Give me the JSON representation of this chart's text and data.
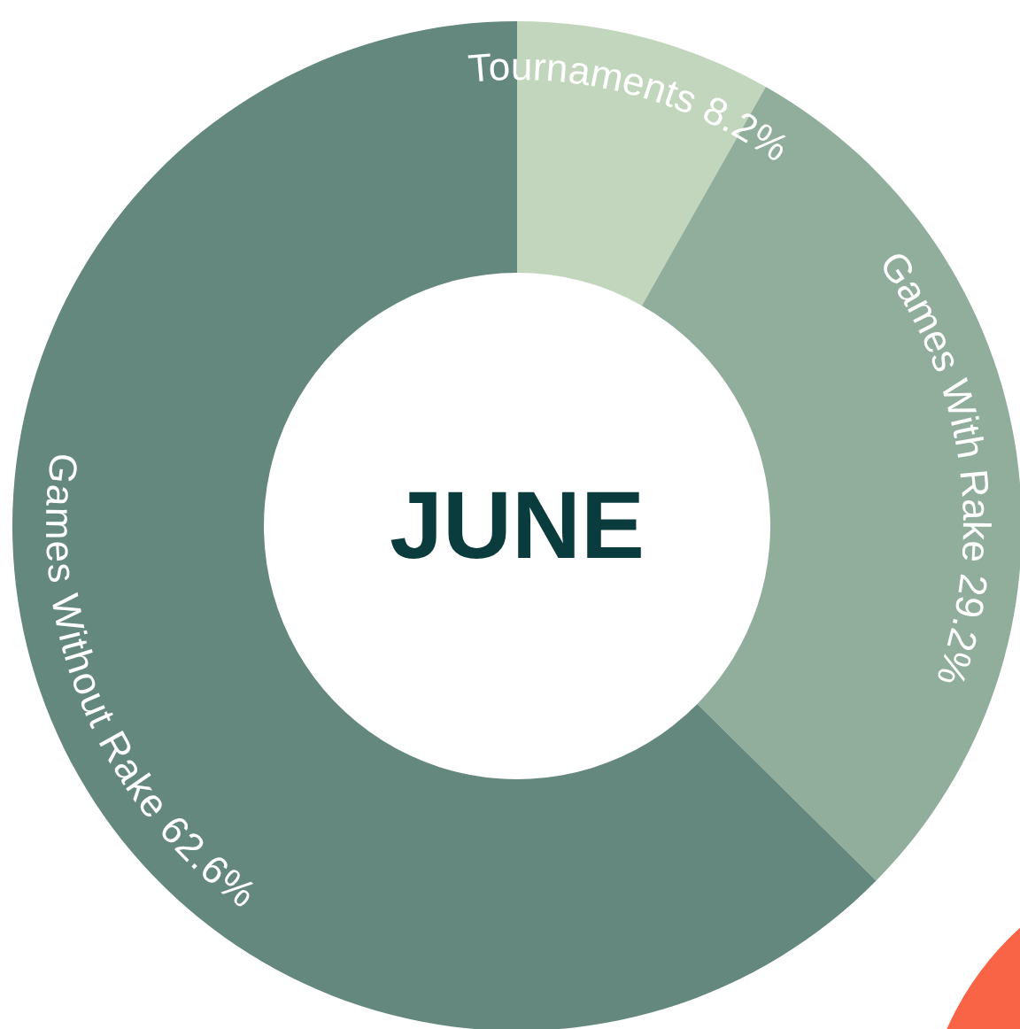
{
  "chart_data": {
    "type": "donut",
    "title": "JUNE",
    "categories": [
      "Tournaments",
      "Games With Rake",
      "Games Without Rake"
    ],
    "values": [
      8.2,
      29.2,
      62.6
    ],
    "value_labels": [
      "8.2%",
      "29.2%",
      "62.6%"
    ],
    "colors": [
      "#c2d6bd",
      "#91ad9c",
      "#64877e"
    ]
  }
}
